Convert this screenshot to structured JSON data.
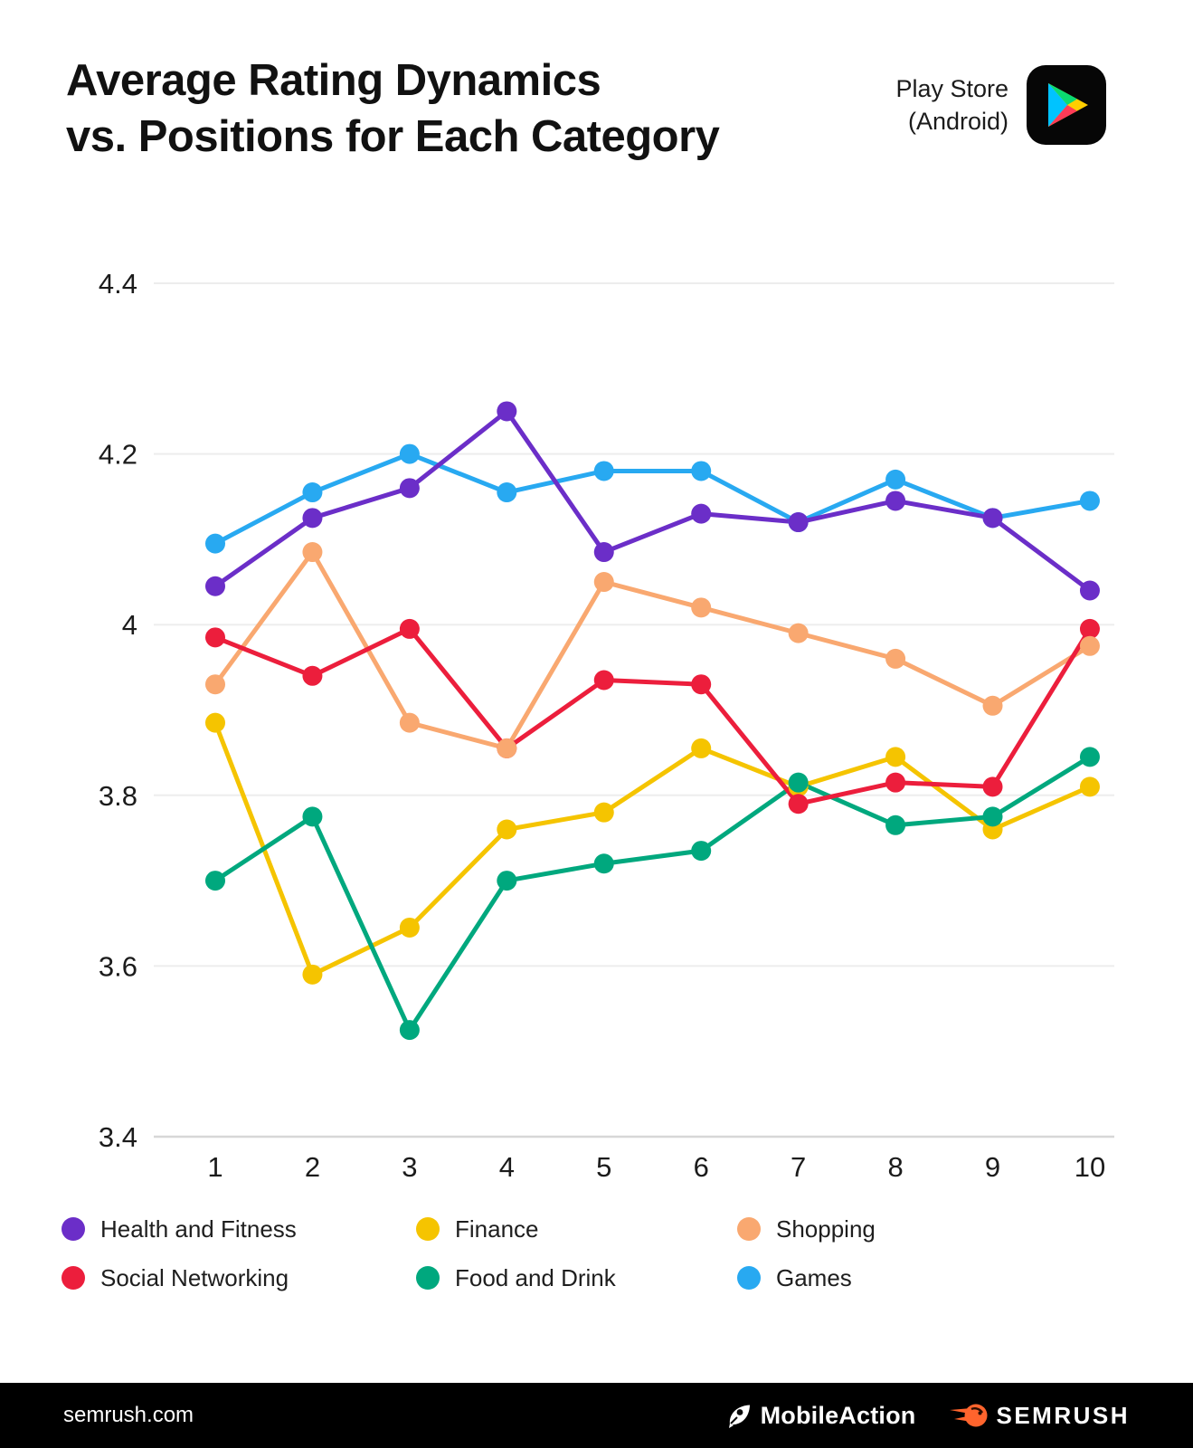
{
  "header": {
    "title_line1": "Average Rating Dynamics",
    "title_line2": "vs. Positions for Each Category",
    "platform_line1": "Play Store",
    "platform_line2": "(Android)",
    "platform_icon": "google-play-icon"
  },
  "chart_data": {
    "type": "line",
    "title": "Average Rating Dynamics vs. Positions for Each Category",
    "xlabel": "",
    "ylabel": "",
    "x": [
      1,
      2,
      3,
      4,
      5,
      6,
      7,
      8,
      9,
      10
    ],
    "ylim": [
      3.4,
      4.4
    ],
    "yticks": [
      4.4,
      4.2,
      4.0,
      3.8,
      3.6,
      3.4
    ],
    "ytick_labels": [
      "4.4",
      "4.2",
      "4",
      "3.8",
      "3.6",
      "3.4"
    ],
    "grid": true,
    "legend_position": "bottom",
    "series": [
      {
        "name": "Health and Fitness",
        "color": "#6B2EC8",
        "values": [
          4.045,
          4.125,
          4.16,
          4.25,
          4.085,
          4.13,
          4.12,
          4.145,
          4.125,
          4.04
        ]
      },
      {
        "name": "Finance",
        "color": "#F5C400",
        "values": [
          3.885,
          3.59,
          3.645,
          3.76,
          3.78,
          3.855,
          3.81,
          3.845,
          3.76,
          3.81
        ]
      },
      {
        "name": "Shopping",
        "color": "#F9A870",
        "values": [
          3.93,
          4.085,
          3.885,
          3.855,
          4.05,
          4.02,
          3.99,
          3.96,
          3.905,
          3.975
        ]
      },
      {
        "name": "Social Networking",
        "color": "#EC1E3C",
        "values": [
          3.985,
          3.94,
          3.995,
          3.855,
          3.935,
          3.93,
          3.79,
          3.815,
          3.81,
          3.995
        ]
      },
      {
        "name": "Food and Drink",
        "color": "#00A87E",
        "values": [
          3.7,
          3.775,
          3.525,
          3.7,
          3.72,
          3.735,
          3.815,
          3.765,
          3.775,
          3.845
        ]
      },
      {
        "name": "Games",
        "color": "#28A9F1",
        "values": [
          4.095,
          4.155,
          4.2,
          4.155,
          4.18,
          4.18,
          4.12,
          4.17,
          4.125,
          4.145
        ]
      }
    ]
  },
  "footer": {
    "site": "semrush.com",
    "logo1": "MobileAction",
    "logo2": "SEMRUSH"
  }
}
